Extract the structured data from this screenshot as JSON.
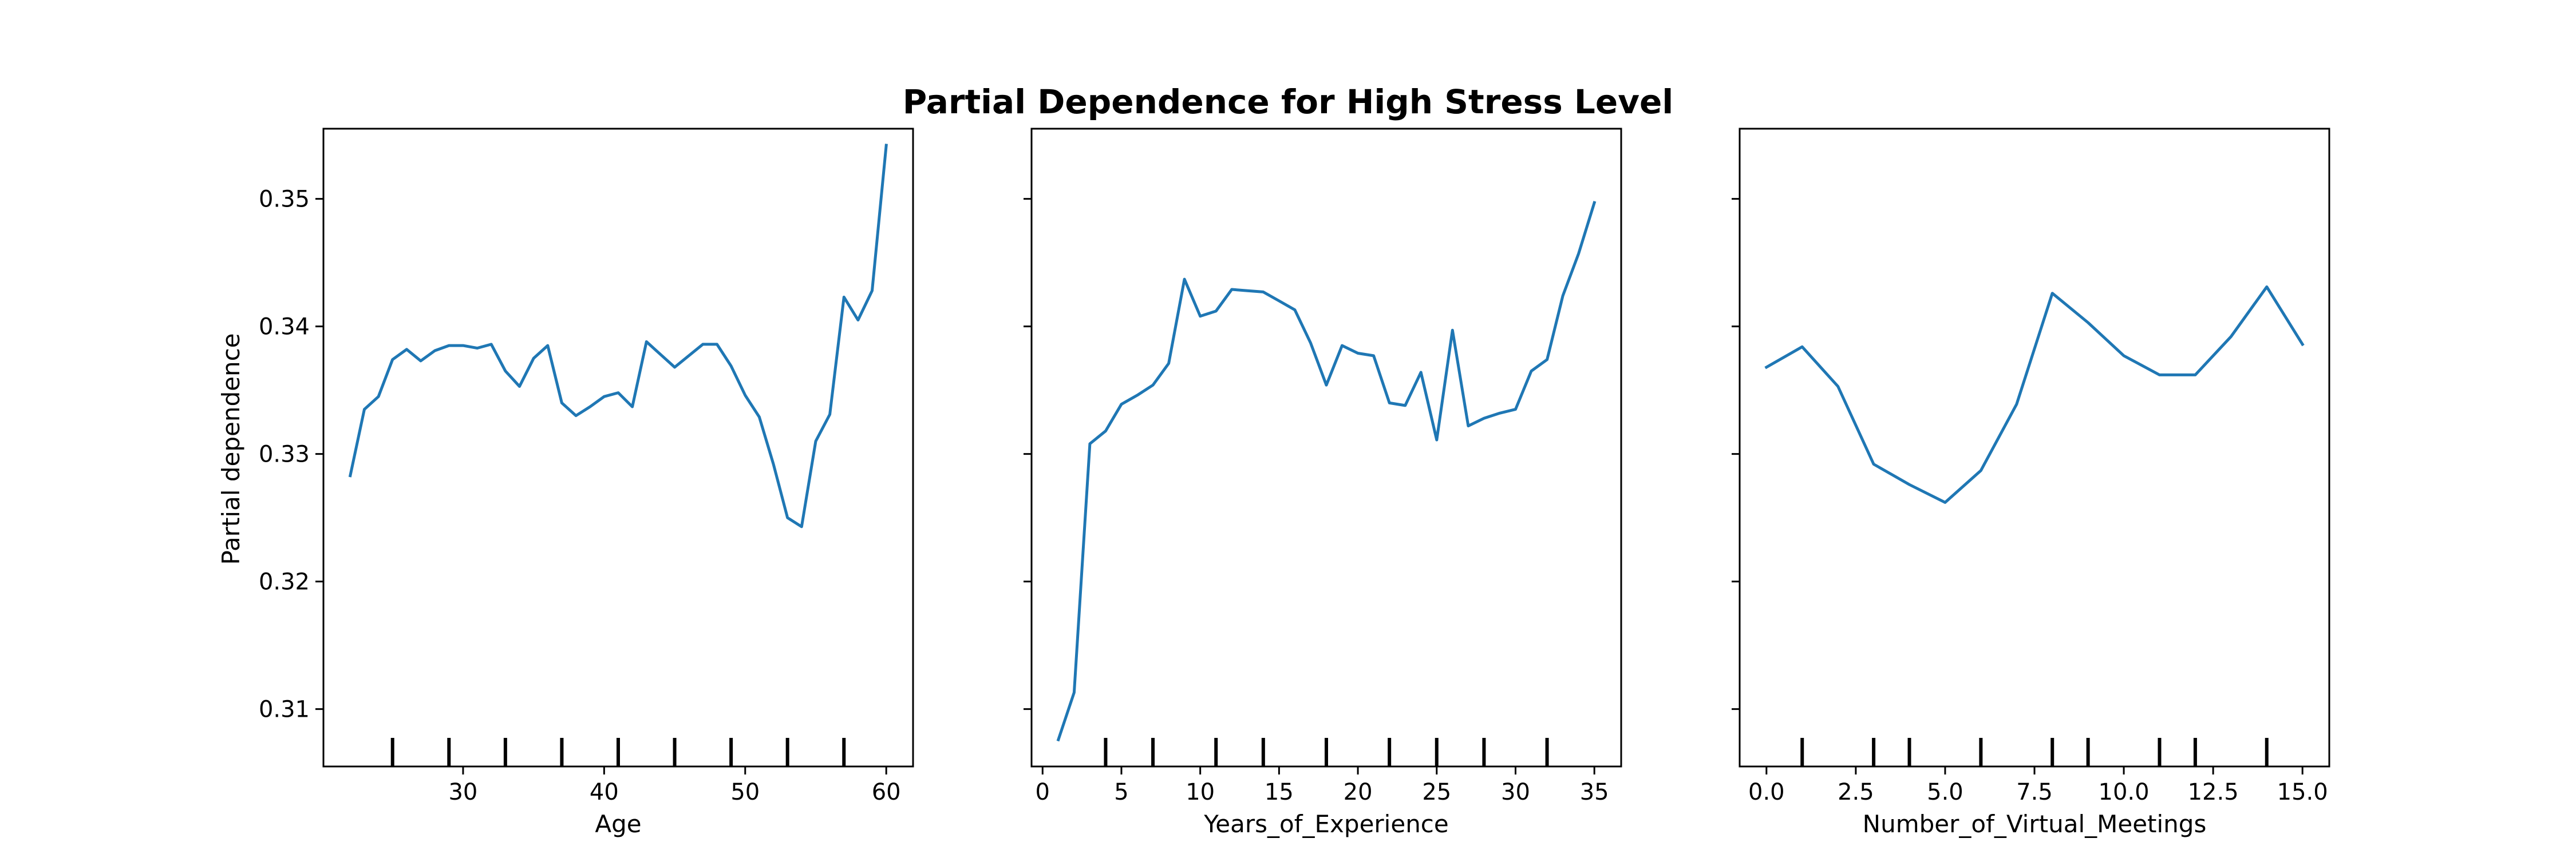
{
  "chart_data": {
    "type": "line",
    "title": "Partial Dependence for High Stress Level",
    "ylabel": "Partial dependence",
    "ylim": [
      0.3055,
      0.3555
    ],
    "yticks": [
      0.31,
      0.32,
      0.33,
      0.34,
      0.35
    ],
    "ytick_labels": [
      "0.31",
      "0.32",
      "0.33",
      "0.34",
      "0.35"
    ],
    "line_color": "#1f77b4",
    "grid": false,
    "panels": [
      {
        "xlabel": "Age",
        "xlim": [
          20.1,
          61.9
        ],
        "xticks": [
          30,
          40,
          50,
          60
        ],
        "xtick_labels": [
          "30",
          "40",
          "50",
          "60"
        ],
        "rug": [
          25,
          29,
          33,
          37,
          41,
          45,
          49,
          53,
          57
        ],
        "x": [
          22,
          23,
          24,
          25,
          26,
          27,
          28,
          29,
          30,
          31,
          32,
          33,
          34,
          35,
          36,
          37,
          38,
          39,
          40,
          41,
          42,
          43,
          44,
          45,
          46,
          47,
          48,
          49,
          50,
          51,
          52,
          53,
          54,
          55,
          56,
          57,
          58,
          59,
          60
        ],
        "y": [
          0.3283,
          0.3335,
          0.3345,
          0.3374,
          0.3382,
          0.3373,
          0.3381,
          0.3385,
          0.3385,
          0.3383,
          0.3386,
          0.3365,
          0.3353,
          0.3375,
          0.3385,
          0.334,
          0.333,
          0.3337,
          0.3345,
          0.3348,
          0.3337,
          0.3388,
          0.3378,
          0.3368,
          0.3377,
          0.3386,
          0.3386,
          0.3369,
          0.3346,
          0.3329,
          0.3292,
          0.325,
          0.3243,
          0.331,
          0.3331,
          0.3423,
          0.3405,
          0.3428,
          0.3542
        ]
      },
      {
        "xlabel": "Years_of_Experience",
        "xlim": [
          -0.7,
          36.7
        ],
        "xticks": [
          0,
          5,
          10,
          15,
          20,
          25,
          30,
          35
        ],
        "xtick_labels": [
          "0",
          "5",
          "10",
          "15",
          "20",
          "25",
          "30",
          "35"
        ],
        "rug": [
          4,
          7,
          11,
          14,
          18,
          22,
          25,
          28,
          32
        ],
        "x": [
          1,
          2,
          3,
          4,
          5,
          6,
          7,
          8,
          9,
          10,
          11,
          12,
          13,
          14,
          15,
          16,
          17,
          18,
          19,
          20,
          21,
          22,
          23,
          24,
          25,
          26,
          27,
          28,
          29,
          30,
          31,
          32,
          33,
          34,
          35
        ],
        "y": [
          0.3076,
          0.3113,
          0.3308,
          0.3318,
          0.3339,
          0.3346,
          0.3354,
          0.3371,
          0.3437,
          0.3408,
          0.3412,
          0.3429,
          0.3428,
          0.3427,
          0.342,
          0.3413,
          0.3387,
          0.3354,
          0.3385,
          0.3379,
          0.3377,
          0.334,
          0.3338,
          0.3364,
          0.3311,
          0.3397,
          0.3322,
          0.3328,
          0.3332,
          0.3335,
          0.3365,
          0.3374,
          0.3424,
          0.3457,
          0.3497
        ]
      },
      {
        "xlabel": "Number_of_Virtual_Meetings",
        "xlim": [
          -0.75,
          15.75
        ],
        "xticks": [
          0,
          2.5,
          5,
          7.5,
          10,
          12.5,
          15
        ],
        "xtick_labels": [
          "0.0",
          "2.5",
          "5.0",
          "7.5",
          "10.0",
          "12.5",
          "15.0"
        ],
        "rug": [
          1,
          3,
          4,
          6,
          8,
          9,
          11,
          12,
          14
        ],
        "x": [
          0,
          1,
          2,
          3,
          4,
          5,
          6,
          7,
          8,
          9,
          10,
          11,
          12,
          13,
          14,
          15
        ],
        "y": [
          0.3368,
          0.3384,
          0.3353,
          0.3292,
          0.3276,
          0.3262,
          0.3287,
          0.3339,
          0.3426,
          0.3403,
          0.3377,
          0.3362,
          0.3362,
          0.3392,
          0.3431,
          0.3386
        ]
      }
    ]
  }
}
